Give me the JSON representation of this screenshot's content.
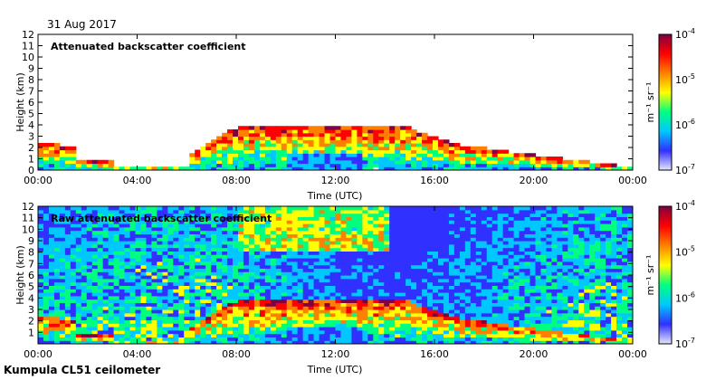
{
  "date": "31 Aug 2017",
  "footer": "Kumpula CL51 ceilometer",
  "colorscale": [
    "#e6e6ff",
    "#3030ff",
    "#00c8ff",
    "#00ff80",
    "#ffff00",
    "#ff8000",
    "#ff0000",
    "#800040"
  ],
  "chart_data": [
    {
      "type": "heatmap",
      "title": "Attenuated backscatter coefficient",
      "xlabel": "Time (UTC)",
      "ylabel": "Height (km)",
      "xticks": [
        "00:00",
        "04:00",
        "08:00",
        "12:00",
        "16:00",
        "20:00",
        "00:00"
      ],
      "yticks": [
        "0",
        "1",
        "2",
        "3",
        "4",
        "5",
        "6",
        "7",
        "8",
        "9",
        "10",
        "11",
        "12"
      ],
      "ylim": [
        0,
        12
      ],
      "xlim_hours": [
        0,
        24
      ],
      "colorbar": {
        "label": "m⁻¹ sr⁻¹",
        "ticks": [
          {
            "base": "10",
            "exp": "-4"
          },
          {
            "base": "10",
            "exp": "-5"
          },
          {
            "base": "10",
            "exp": "-6"
          },
          {
            "base": "10",
            "exp": "-7"
          }
        ]
      }
    },
    {
      "type": "heatmap",
      "title": "Raw attenuated backscatter coefficient",
      "xlabel": "Time (UTC)",
      "ylabel": "Height (km)",
      "xticks": [
        "00:00",
        "04:00",
        "08:00",
        "12:00",
        "16:00",
        "20:00",
        "00:00"
      ],
      "yticks": [
        "1",
        "2",
        "3",
        "4",
        "5",
        "6",
        "7",
        "8",
        "9",
        "10",
        "11",
        "12"
      ],
      "ylim": [
        0,
        12
      ],
      "xlim_hours": [
        0,
        24
      ],
      "colorbar": {
        "label": "m⁻¹ sr⁻¹",
        "ticks": [
          {
            "base": "10",
            "exp": "-4"
          },
          {
            "base": "10",
            "exp": "-5"
          },
          {
            "base": "10",
            "exp": "-6"
          },
          {
            "base": "10",
            "exp": "-7"
          }
        ]
      }
    }
  ]
}
